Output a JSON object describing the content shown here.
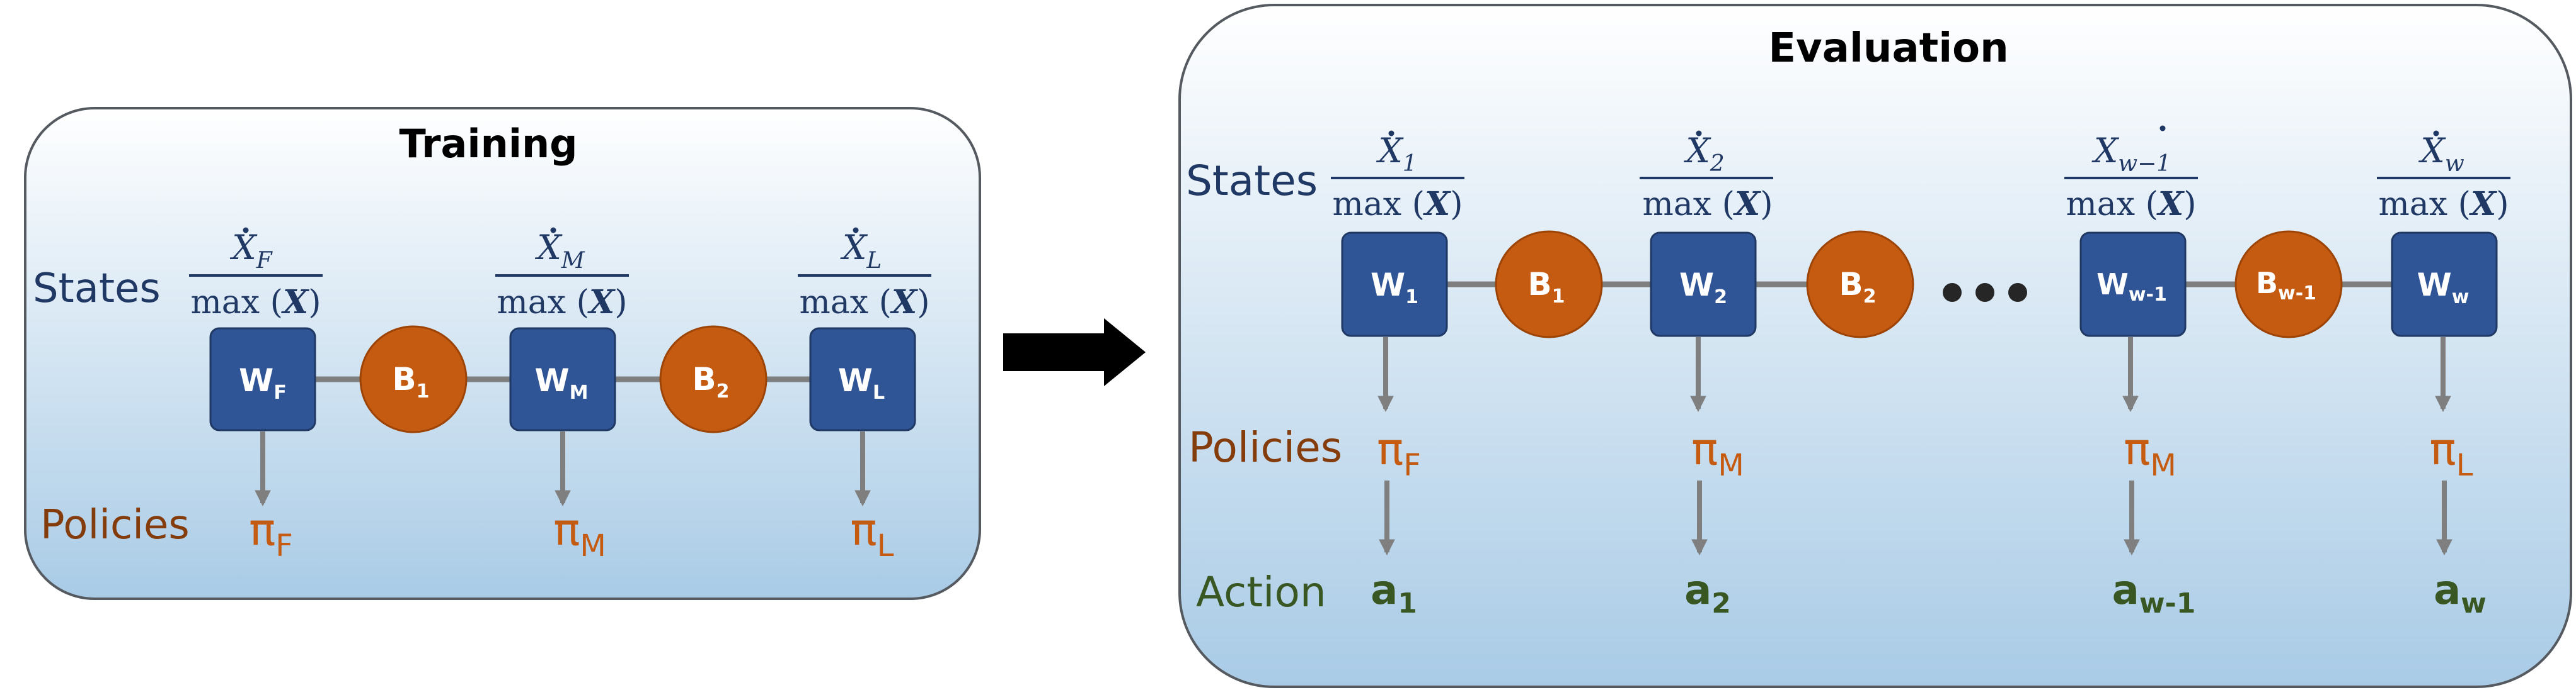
{
  "colors": {
    "panel_top": "#ffffff",
    "panel_bottom": "#a9cbe6",
    "panel_border": "#555a60",
    "node_blue": "#2f5597",
    "node_orange": "#c55a11",
    "connector": "#7f7f7f",
    "label_blue": "#203864",
    "label_orange": "#843c0c",
    "label_green": "#385723",
    "arrow_black": "#000000"
  },
  "training": {
    "title": "Training",
    "states_label": "States",
    "policies_label": "Policies",
    "nodes": {
      "w_f": {
        "main": "W",
        "sub": "F"
      },
      "b_1": {
        "main": "B",
        "sub": "1"
      },
      "w_m": {
        "main": "W",
        "sub": "M"
      },
      "b_2": {
        "main": "B",
        "sub": "2"
      },
      "w_l": {
        "main": "W",
        "sub": "L"
      }
    },
    "fractions": {
      "f": {
        "num": "X",
        "sub": "F",
        "den": "max (",
        "den_bold": "X",
        "den_end": ")"
      },
      "m": {
        "num": "X",
        "sub": "M",
        "den": "max (",
        "den_bold": "X",
        "den_end": ")"
      },
      "l": {
        "num": "X",
        "sub": "L",
        "den": "max (",
        "den_bold": "X",
        "den_end": ")"
      }
    },
    "policies": {
      "f": {
        "main": "π",
        "sub": "F"
      },
      "m": {
        "main": "π",
        "sub": "M"
      },
      "l": {
        "main": "π",
        "sub": "L"
      }
    }
  },
  "evaluation": {
    "title": "Evaluation",
    "states_label": "States",
    "policies_label": "Policies",
    "action_label": "Action",
    "ellipsis": "• • •",
    "nodes": {
      "w_1": {
        "main": "W",
        "sub": "1"
      },
      "b_1": {
        "main": "B",
        "sub": "1"
      },
      "w_2": {
        "main": "W",
        "sub": "2"
      },
      "b_2": {
        "main": "B",
        "sub": "2"
      },
      "w_w1": {
        "main": "W",
        "sub": "w-1"
      },
      "b_w1": {
        "main": "B",
        "sub": "w-1"
      },
      "w_w": {
        "main": "W",
        "sub": "w"
      }
    },
    "fractions": {
      "f1": {
        "num": "X",
        "sub": "1",
        "den": "max (",
        "den_bold": "X",
        "den_end": ")"
      },
      "f2": {
        "num": "X",
        "sub": "2",
        "den": "max (",
        "den_bold": "X",
        "den_end": ")"
      },
      "fw1": {
        "num": "X",
        "sub": "w−1",
        "den": "max (",
        "den_bold": "X",
        "den_end": ")"
      },
      "fw": {
        "num": "X",
        "sub": "w",
        "den": "max (",
        "den_bold": "X",
        "den_end": ")"
      }
    },
    "policies": {
      "p1": {
        "main": "π",
        "sub": "F"
      },
      "p2": {
        "main": "π",
        "sub": "M"
      },
      "p3": {
        "main": "π",
        "sub": "M"
      },
      "p4": {
        "main": "π",
        "sub": "L"
      }
    },
    "actions": {
      "a1": {
        "main": "a",
        "sub": "1"
      },
      "a2": {
        "main": "a",
        "sub": "2"
      },
      "a3": {
        "main": "a",
        "sub": "w-1"
      },
      "a4": {
        "main": "a",
        "sub": "w"
      }
    }
  }
}
